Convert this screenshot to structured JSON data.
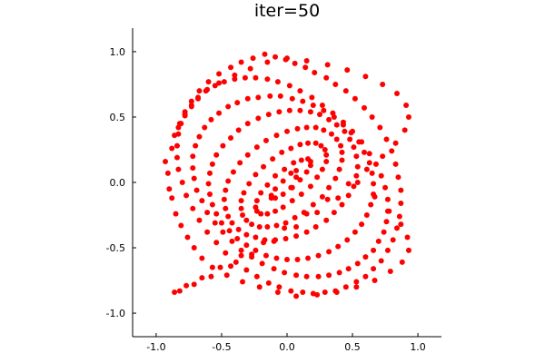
{
  "chart_data": {
    "type": "scatter",
    "title": "iter=50",
    "xlabel": "",
    "ylabel": "",
    "xlim": [
      -1.18,
      1.18
    ],
    "ylim": [
      -1.18,
      1.18
    ],
    "xticks": [
      "-1.0",
      "-0.5",
      "0.0",
      "0.5",
      "1.0"
    ],
    "yticks": [
      "-1.0",
      "-0.5",
      "0.0",
      "0.5",
      "1.0"
    ],
    "xtick_values": [
      -1.0,
      -0.5,
      0.0,
      0.5,
      1.0
    ],
    "ytick_values": [
      -1.0,
      -0.5,
      0.0,
      0.5,
      1.0
    ],
    "grid": false,
    "legend": "none",
    "marker_color": "#ff0000",
    "series": [
      {
        "x": [
          -0.93,
          -0.91,
          -0.9,
          -0.88,
          -0.88,
          -0.86,
          -0.85,
          -0.83,
          -0.81,
          -0.78,
          -0.76,
          -0.73,
          -0.71,
          -0.68,
          -0.65,
          -0.61,
          -0.57,
          -0.52,
          -0.46,
          -0.4,
          -0.34,
          -0.28,
          -0.21,
          -0.15,
          -0.07,
          0.0,
          0.07,
          0.15,
          0.23,
          0.31,
          0.38,
          0.46,
          0.53,
          0.6,
          0.67,
          0.73,
          0.79,
          0.84,
          0.88,
          0.91,
          0.93,
          0.93,
          0.92,
          0.9,
          0.87,
          0.83,
          0.78,
          0.73,
          0.67,
          0.61,
          0.54,
          0.47,
          0.39,
          0.31,
          0.23,
          0.15,
          0.07,
          -0.02,
          -0.1,
          -0.18,
          -0.27,
          -0.35,
          -0.43,
          -0.51,
          -0.58,
          -0.65,
          -0.71,
          -0.77,
          -0.82,
          -0.86,
          -0.17,
          -0.09,
          -0.01,
          0.06,
          0.14,
          0.21,
          -0.26,
          -0.35,
          -0.43,
          0.3,
          0.37,
          0.45,
          0.52,
          0.59,
          0.65,
          0.71,
          -0.52,
          -0.6,
          -0.67,
          -0.73,
          -0.78,
          -0.82,
          0.76,
          0.8,
          0.83,
          0.85,
          0.87,
          0.87,
          0.86,
          0.84,
          0.81,
          0.77,
          0.72,
          0.66,
          0.6,
          0.53,
          0.45,
          0.37,
          0.29,
          0.2,
          0.12,
          0.03,
          -0.06,
          -0.14,
          -0.23,
          -0.31,
          -0.39,
          -0.47,
          -0.54,
          -0.61,
          -0.67,
          -0.72,
          -0.77,
          -0.8,
          -0.83,
          -0.84,
          -0.84,
          -0.83,
          -0.81,
          -0.78,
          -0.73,
          -0.68,
          -0.62,
          -0.55,
          -0.48,
          -0.4,
          -0.32,
          -0.24,
          -0.15,
          -0.07,
          0.02,
          0.1,
          0.19,
          0.27,
          0.35,
          0.43,
          0.5,
          0.57,
          0.63,
          0.68,
          0.72,
          0.75,
          0.77,
          0.77,
          0.76,
          0.74,
          0.7,
          0.66,
          0.6,
          0.54,
          0.47,
          0.4,
          0.32,
          0.24,
          0.15,
          0.07,
          -0.02,
          -0.1,
          -0.19,
          -0.27,
          -0.35,
          -0.42,
          -0.49,
          -0.55,
          -0.61,
          -0.65,
          -0.69,
          -0.71,
          -0.72,
          -0.72,
          -0.7,
          -0.67,
          -0.63,
          -0.58,
          -0.52,
          -0.45,
          -0.38,
          -0.3,
          -0.22,
          -0.13,
          -0.05,
          0.04,
          0.12,
          0.2,
          0.28,
          0.36,
          0.43,
          0.49,
          0.55,
          0.59,
          0.63,
          0.65,
          0.66,
          0.66,
          0.64,
          0.61,
          0.57,
          0.52,
          0.46,
          0.39,
          0.32,
          0.24,
          0.16,
          0.08,
          0.0,
          -0.08,
          -0.16,
          -0.24,
          -0.31,
          -0.38,
          -0.44,
          -0.5,
          -0.54,
          -0.57,
          -0.59,
          -0.6,
          -0.59,
          -0.57,
          -0.54,
          -0.49,
          -0.43,
          -0.37,
          -0.3,
          -0.22,
          -0.14,
          -0.06,
          0.02,
          0.1,
          0.18,
          0.25,
          0.32,
          0.38,
          0.44,
          0.48,
          0.51,
          0.53,
          0.54,
          0.53,
          0.51,
          0.47,
          0.42,
          0.36,
          0.3,
          0.22,
          0.15,
          0.07,
          -0.01,
          -0.09,
          -0.17,
          -0.24,
          -0.31,
          -0.37,
          -0.42,
          -0.45,
          -0.47,
          -0.48,
          -0.47,
          -0.45,
          -0.41,
          -0.36,
          -0.3,
          -0.23,
          -0.16,
          -0.08,
          0.0,
          0.08,
          0.15,
          0.22,
          0.28,
          0.34,
          0.38,
          0.41,
          0.42,
          0.42,
          0.4,
          0.37,
          0.32,
          0.27,
          0.2,
          0.13,
          0.06,
          -0.01,
          -0.08,
          -0.15,
          -0.21,
          -0.27,
          -0.31,
          -0.34,
          -0.35,
          -0.35,
          -0.33,
          -0.29,
          -0.24,
          -0.18,
          -0.11,
          -0.04,
          0.03,
          0.1,
          0.16,
          0.22,
          0.26,
          0.29,
          0.3,
          0.3,
          0.27,
          0.23,
          0.18,
          0.11,
          0.04,
          -0.03,
          -0.09,
          -0.15,
          -0.2,
          -0.23,
          -0.24,
          -0.23,
          -0.2,
          -0.15,
          -0.09,
          -0.02,
          0.05,
          0.11,
          0.16,
          0.18,
          0.18,
          0.15,
          0.1,
          0.04,
          -0.03,
          -0.09,
          -0.12,
          -0.12,
          -0.09,
          -0.03,
          0.03,
          0.07,
          0.07,
          0.03
        ],
        "y": [
          0.16,
          0.07,
          -0.05,
          0.26,
          -0.12,
          0.36,
          -0.24,
          0.42,
          -0.33,
          0.51,
          -0.42,
          0.58,
          -0.5,
          0.64,
          -0.58,
          0.71,
          -0.65,
          0.76,
          -0.71,
          0.82,
          -0.76,
          0.87,
          -0.8,
          0.92,
          -0.84,
          0.95,
          -0.87,
          0.93,
          -0.86,
          0.9,
          -0.84,
          0.86,
          -0.8,
          0.81,
          -0.75,
          0.75,
          -0.68,
          0.68,
          -0.61,
          0.59,
          -0.52,
          0.5,
          -0.42,
          0.4,
          -0.32,
          0.3,
          -0.22,
          0.2,
          -0.11,
          0.1,
          0.0,
          -0.01,
          -0.12,
          -0.13,
          -0.23,
          -0.24,
          -0.34,
          -0.35,
          -0.45,
          -0.46,
          -0.55,
          -0.56,
          -0.64,
          -0.65,
          -0.72,
          -0.73,
          -0.78,
          -0.79,
          -0.83,
          -0.84,
          0.98,
          0.96,
          0.94,
          0.91,
          0.88,
          0.84,
          0.95,
          0.92,
          0.88,
          0.8,
          0.75,
          0.7,
          0.64,
          0.57,
          0.5,
          0.42,
          0.83,
          0.77,
          0.7,
          0.62,
          0.54,
          0.45,
          0.33,
          0.24,
          0.14,
          0.04,
          -0.06,
          -0.16,
          -0.26,
          -0.35,
          -0.44,
          -0.52,
          -0.6,
          -0.66,
          -0.72,
          -0.76,
          -0.8,
          -0.83,
          -0.84,
          -0.85,
          -0.84,
          -0.83,
          -0.8,
          -0.77,
          -0.72,
          -0.67,
          -0.61,
          -0.54,
          -0.46,
          -0.38,
          -0.29,
          -0.2,
          -0.1,
          0.0,
          0.1,
          0.19,
          0.28,
          0.37,
          0.45,
          0.52,
          0.59,
          0.65,
          0.7,
          0.74,
          0.77,
          0.79,
          0.8,
          0.8,
          0.79,
          0.77,
          0.74,
          0.7,
          0.65,
          0.59,
          0.53,
          0.46,
          0.39,
          0.31,
          0.22,
          0.14,
          0.05,
          -0.04,
          -0.13,
          -0.22,
          -0.3,
          -0.38,
          -0.45,
          -0.52,
          -0.57,
          -0.62,
          -0.66,
          -0.69,
          -0.71,
          -0.72,
          -0.72,
          -0.71,
          -0.69,
          -0.66,
          -0.62,
          -0.57,
          -0.52,
          -0.45,
          -0.38,
          -0.31,
          -0.23,
          -0.14,
          -0.06,
          0.03,
          0.11,
          0.2,
          0.28,
          0.35,
          0.42,
          0.48,
          0.53,
          0.58,
          0.61,
          0.64,
          0.65,
          0.66,
          0.66,
          0.64,
          0.62,
          0.59,
          0.55,
          0.5,
          0.44,
          0.38,
          0.31,
          0.23,
          0.15,
          0.07,
          -0.01,
          -0.09,
          -0.17,
          -0.25,
          -0.32,
          -0.38,
          -0.44,
          -0.49,
          -0.53,
          -0.56,
          -0.58,
          -0.59,
          -0.59,
          -0.58,
          -0.56,
          -0.52,
          -0.48,
          -0.43,
          -0.37,
          -0.31,
          -0.24,
          -0.17,
          -0.09,
          -0.01,
          0.07,
          0.14,
          0.21,
          0.28,
          0.34,
          0.4,
          0.45,
          0.49,
          0.52,
          0.54,
          0.55,
          0.55,
          0.54,
          0.52,
          0.48,
          0.44,
          0.39,
          0.33,
          0.27,
          0.2,
          0.12,
          0.05,
          -0.03,
          -0.1,
          -0.17,
          -0.23,
          -0.29,
          -0.34,
          -0.38,
          -0.41,
          -0.43,
          -0.44,
          -0.44,
          -0.42,
          -0.4,
          -0.36,
          -0.31,
          -0.26,
          -0.2,
          -0.13,
          -0.06,
          0.01,
          0.08,
          0.15,
          0.21,
          0.27,
          0.32,
          0.36,
          0.39,
          0.41,
          0.42,
          0.42,
          0.4,
          0.37,
          0.33,
          0.28,
          0.23,
          0.17,
          0.1,
          0.03,
          -0.04,
          -0.11,
          -0.17,
          -0.23,
          -0.27,
          -0.31,
          -0.33,
          -0.34,
          -0.34,
          -0.32,
          -0.29,
          -0.25,
          -0.2,
          -0.14,
          -0.08,
          -0.01,
          0.06,
          0.12,
          0.18,
          0.23,
          0.26,
          0.29,
          0.3,
          0.3,
          0.28,
          0.25,
          0.21,
          0.16,
          0.1,
          0.04,
          -0.03,
          -0.09,
          -0.14,
          -0.19,
          -0.22,
          -0.24,
          -0.24,
          -0.22,
          -0.19,
          -0.14,
          -0.08,
          -0.02,
          0.05,
          0.1,
          0.15,
          0.17,
          0.18,
          0.16,
          0.13,
          0.08,
          0.02,
          -0.04,
          -0.09,
          -0.12,
          -0.12,
          -0.1,
          -0.05,
          0.01,
          0.07,
          0.09,
          0.04,
          -0.04
        ]
      }
    ]
  }
}
